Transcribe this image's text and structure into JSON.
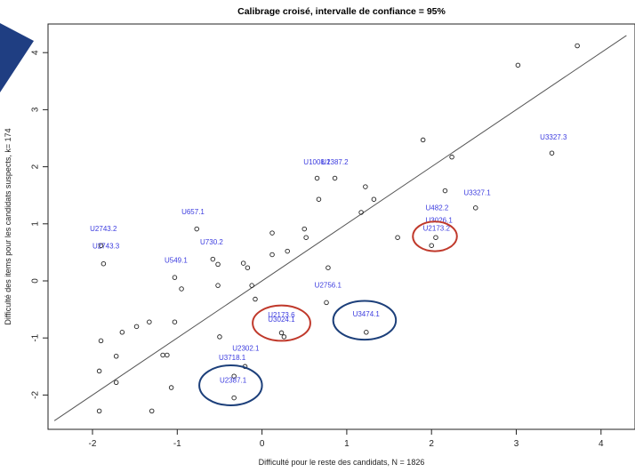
{
  "chart_data": {
    "type": "scatter",
    "title": "Calibrage croisé, intervalle de confiance = 95%",
    "xlabel": "Difficulté pour le reste des candidats, N =  1826",
    "ylabel": "Difficulté des items pour les candidats suspects, k= 174",
    "xlim": [
      -2.5,
      4.3
    ],
    "ylim": [
      -2.6,
      4.3
    ],
    "x_ticks": [
      -2,
      -1,
      0,
      1,
      2,
      3,
      4
    ],
    "y_ticks": [
      -2,
      -1,
      0,
      1,
      2,
      3,
      4
    ],
    "grid": false,
    "identity_line": true,
    "points": [
      {
        "x": 3.72,
        "y": 4.12
      },
      {
        "x": 3.02,
        "y": 3.78
      },
      {
        "x": 3.42,
        "y": 2.24
      },
      {
        "x": 2.24,
        "y": 2.17
      },
      {
        "x": 1.9,
        "y": 2.47
      },
      {
        "x": 2.52,
        "y": 1.28
      },
      {
        "x": 2.16,
        "y": 1.58
      },
      {
        "x": 2.0,
        "y": 0.62
      },
      {
        "x": 2.05,
        "y": 0.76
      },
      {
        "x": 1.22,
        "y": 1.65
      },
      {
        "x": 1.32,
        "y": 1.43
      },
      {
        "x": 1.17,
        "y": 1.2
      },
      {
        "x": 0.86,
        "y": 1.8
      },
      {
        "x": 0.65,
        "y": 1.8
      },
      {
        "x": 0.67,
        "y": 1.43
      },
      {
        "x": 0.5,
        "y": 0.91
      },
      {
        "x": 0.52,
        "y": 0.76
      },
      {
        "x": 0.3,
        "y": 0.52
      },
      {
        "x": 0.12,
        "y": 0.84
      },
      {
        "x": 0.12,
        "y": 0.46
      },
      {
        "x": 0.78,
        "y": 0.23
      },
      {
        "x": 1.6,
        "y": 0.76
      },
      {
        "x": 0.76,
        "y": -0.38
      },
      {
        "x": 1.23,
        "y": -0.9
      },
      {
        "x": 0.23,
        "y": -0.91
      },
      {
        "x": 0.26,
        "y": -0.98
      },
      {
        "x": -0.77,
        "y": 0.91
      },
      {
        "x": -0.58,
        "y": 0.38
      },
      {
        "x": -0.52,
        "y": 0.29
      },
      {
        "x": -0.22,
        "y": 0.31
      },
      {
        "x": -0.17,
        "y": 0.23
      },
      {
        "x": -1.03,
        "y": 0.06
      },
      {
        "x": -0.95,
        "y": -0.14
      },
      {
        "x": -0.52,
        "y": -0.08
      },
      {
        "x": -0.12,
        "y": -0.08
      },
      {
        "x": -0.08,
        "y": -0.32
      },
      {
        "x": -1.03,
        "y": -0.72
      },
      {
        "x": -1.33,
        "y": -0.72
      },
      {
        "x": -1.48,
        "y": -0.8
      },
      {
        "x": -1.65,
        "y": -0.9
      },
      {
        "x": -1.9,
        "y": -1.05
      },
      {
        "x": -1.17,
        "y": -1.3
      },
      {
        "x": -1.12,
        "y": -1.3
      },
      {
        "x": -1.72,
        "y": -1.32
      },
      {
        "x": -0.5,
        "y": -0.98
      },
      {
        "x": -1.92,
        "y": -1.58
      },
      {
        "x": -1.72,
        "y": -1.78
      },
      {
        "x": -1.07,
        "y": -1.87
      },
      {
        "x": -0.2,
        "y": -1.5
      },
      {
        "x": -0.33,
        "y": -1.67
      },
      {
        "x": -0.33,
        "y": -2.05
      },
      {
        "x": -1.3,
        "y": -2.28
      },
      {
        "x": -1.92,
        "y": -2.28
      },
      {
        "x": -1.87,
        "y": 0.3
      },
      {
        "x": -1.9,
        "y": 0.62
      }
    ],
    "point_labels": [
      {
        "text": "U3327.3",
        "x": 3.28,
        "y": 2.48
      },
      {
        "text": "U3327.1",
        "x": 2.38,
        "y": 1.5
      },
      {
        "text": "U1008.1",
        "x": 0.49,
        "y": 2.04
      },
      {
        "text": "U2387.2",
        "x": 0.7,
        "y": 2.04
      },
      {
        "text": "U482.2",
        "x": 1.93,
        "y": 1.24
      },
      {
        "text": "U3026.1",
        "x": 1.93,
        "y": 1.02
      },
      {
        "text": "U2173.2",
        "x": 1.9,
        "y": 0.88
      },
      {
        "text": "U2756.1",
        "x": 0.62,
        "y": -0.12
      },
      {
        "text": "U3474.1",
        "x": 1.07,
        "y": -0.62
      },
      {
        "text": "U2173.6",
        "x": 0.07,
        "y": -0.64
      },
      {
        "text": "U3024.1",
        "x": 0.07,
        "y": -0.72
      },
      {
        "text": "U657.1",
        "x": -0.95,
        "y": 1.17
      },
      {
        "text": "U730.2",
        "x": -0.73,
        "y": 0.64
      },
      {
        "text": "U549.1",
        "x": -1.15,
        "y": 0.32
      },
      {
        "text": "U2743.2",
        "x": -2.03,
        "y": 0.87
      },
      {
        "text": "U2743.3",
        "x": -2.0,
        "y": 0.57
      },
      {
        "text": "U2302.1",
        "x": -0.35,
        "y": -1.22
      },
      {
        "text": "U3718.1",
        "x": -0.51,
        "y": -1.39
      },
      {
        "text": "U2387.1",
        "x": -0.5,
        "y": -1.78
      }
    ],
    "highlights": [
      {
        "shape": "circle",
        "color": "#c0392b",
        "cx": 2.04,
        "cy": 0.78,
        "rx": 0.26,
        "ry": 0.26
      },
      {
        "shape": "circle",
        "color": "#c0392b",
        "cx": 0.23,
        "cy": -0.74,
        "rx": 0.34,
        "ry": 0.31
      },
      {
        "shape": "circle",
        "color": "#1c3f7a",
        "cx": 1.21,
        "cy": -0.69,
        "rx": 0.37,
        "ry": 0.34
      },
      {
        "shape": "circle",
        "color": "#1c3f7a",
        "cx": -0.37,
        "cy": -1.83,
        "rx": 0.37,
        "ry": 0.35
      }
    ]
  },
  "colors": {
    "label_color": "#3b3bdf",
    "red_circle": "#c0392b",
    "blue_circle": "#1c3f7a",
    "corner_banner": "#1f3e82"
  }
}
